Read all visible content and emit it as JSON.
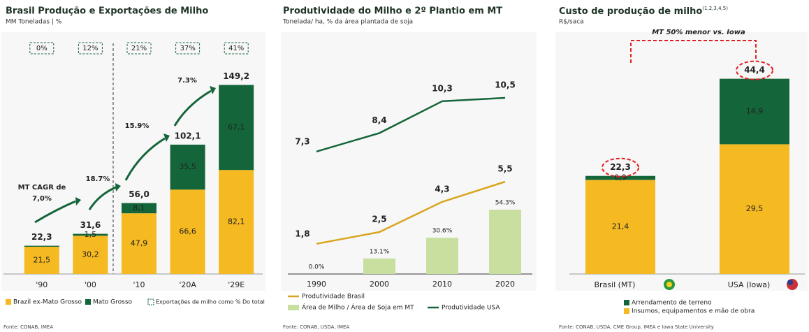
{
  "chart_data": [
    {
      "type": "bar",
      "stacked": true,
      "title": "Brasil Produção e Exportações de Milho",
      "subtitle": "MM Toneladas | %",
      "categories": [
        "'90",
        "'00",
        "'10",
        "'20A",
        "'29E"
      ],
      "series": [
        {
          "name": "Brazil ex-Mato Grosso",
          "color": "#f5b921",
          "values": [
            21.5,
            30.2,
            47.9,
            66.6,
            82.1
          ],
          "value_labels": [
            "21,5",
            "30,2",
            "47,9",
            "66,6",
            "82,1"
          ]
        },
        {
          "name": "Mato Grosso",
          "color": "#14653a",
          "values": [
            0.8,
            1.5,
            8.1,
            35.5,
            67.1
          ],
          "value_labels": [
            null,
            "1,5",
            "8,1",
            "35,5",
            "67,1"
          ]
        }
      ],
      "totals": {
        "values": [
          22.3,
          31.6,
          56.0,
          102.1,
          149.2
        ],
        "value_labels": [
          "22,3",
          "31,6",
          "56,0",
          "102,1",
          "149,2"
        ]
      },
      "export_share": {
        "name": "Exportações de milho como % Do total",
        "values": [
          0,
          12,
          21,
          37,
          41
        ],
        "value_labels": [
          "0%",
          "12%",
          "21%",
          "37%",
          "41%"
        ]
      },
      "annotations": [
        "MT CAGR de",
        "7,0%",
        "18.7%",
        "15.9%",
        "7.3%"
      ],
      "ylim": [
        0,
        160
      ],
      "source": "Fonte: CONAB, IMEA"
    },
    {
      "type": "line",
      "title": "Produtividade do Milho e 2º Plantio em MT",
      "subtitle": "Tonelada/ ha, % da área plantada de soja",
      "categories": [
        "1990",
        "2000",
        "2010",
        "2020"
      ],
      "series": [
        {
          "name": "Produtividade Brasil",
          "type": "line",
          "color": "#d9a520",
          "values": [
            1.8,
            2.5,
            4.3,
            5.5
          ],
          "value_labels": [
            "1,8",
            "2,5",
            "4,3",
            "5,5"
          ]
        },
        {
          "name": "Área de Milho / Área de Soja em MT",
          "type": "bar",
          "axis": "y2",
          "color": "#c9dfa0",
          "values": [
            0.0,
            13.1,
            30.6,
            54.3
          ],
          "value_labels": [
            "0.0%",
            "13.1%",
            "30.6%",
            "54.3%"
          ]
        },
        {
          "name": "Produtividade USA",
          "type": "line",
          "color": "#14653a",
          "values": [
            7.3,
            8.4,
            10.3,
            10.5
          ],
          "value_labels": [
            "7,3",
            "8,4",
            "10,3",
            "10,5"
          ]
        }
      ],
      "ylim": [
        0,
        12
      ],
      "y2lim": [
        0,
        170
      ],
      "source": "Fonte: CONAB, USDA, IMEA"
    },
    {
      "type": "bar",
      "stacked": true,
      "title": "Custo de produção de milho",
      "title_note": "(1,2,3,4,5)",
      "subtitle": "R$/saca",
      "categories": [
        "Brasil (MT)",
        "USA (Iowa)"
      ],
      "series": [
        {
          "name": "Insumos, equipamentos e mão de obra",
          "color": "#f5b921",
          "values": [
            21.4,
            29.5
          ],
          "value_labels": [
            "21,4",
            "29,5"
          ]
        },
        {
          "name": "Arrendamento de terreno",
          "color": "#14653a",
          "values": [
            0.9,
            14.9
          ],
          "value_labels": [
            "0,9",
            "14,9"
          ]
        }
      ],
      "totals": {
        "values": [
          22.3,
          44.4
        ],
        "value_labels": [
          "22,3",
          "44,4"
        ]
      },
      "annotations": [
        "MT 50% menor vs. Iowa"
      ],
      "ylim": [
        0,
        48
      ],
      "source": "Fonte: CONAB, USDA, CME Group, IMEA e Iowa State University"
    }
  ]
}
